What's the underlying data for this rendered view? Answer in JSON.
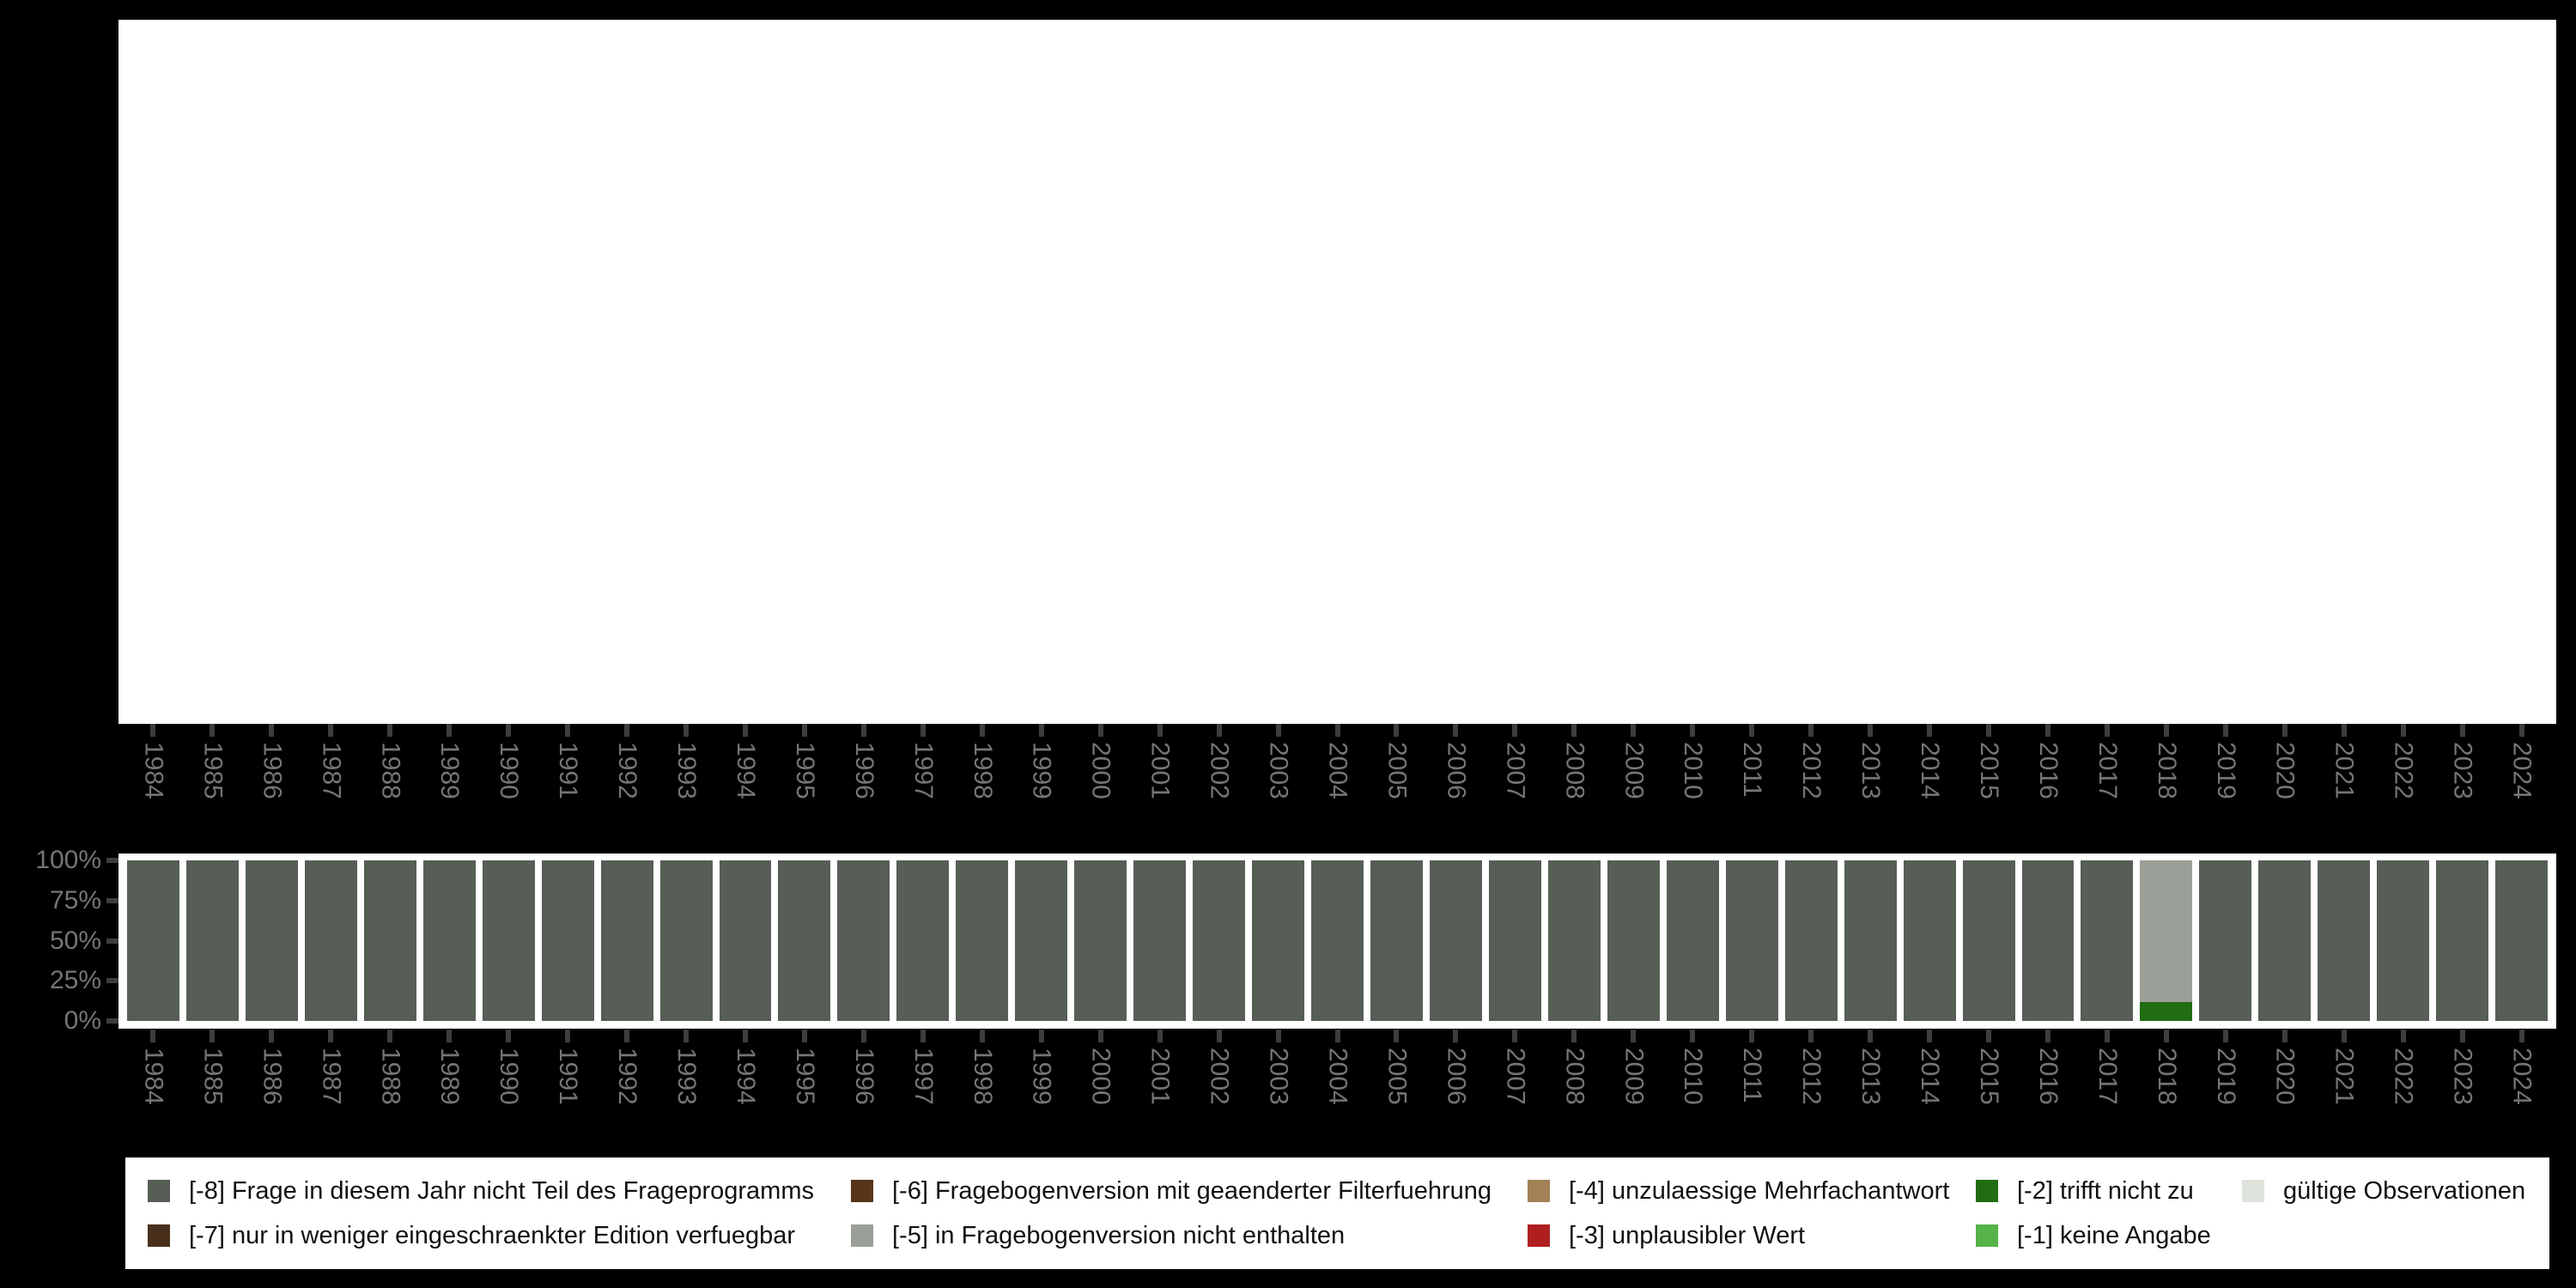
{
  "figure": {
    "background_color": "#000000",
    "panel_background_color": "#ffffff",
    "axis_tick_color": "#3d3d3d",
    "axis_label_color": "#757575"
  },
  "chart_data": {
    "type": "bar",
    "stacked": true,
    "title": "",
    "xlabel": "",
    "ylabel": "",
    "grid": false,
    "legend_position": "bottom",
    "categories": [
      "1984",
      "1985",
      "1986",
      "1987",
      "1988",
      "1989",
      "1990",
      "1991",
      "1992",
      "1993",
      "1994",
      "1995",
      "1996",
      "1997",
      "1998",
      "1999",
      "2000",
      "2001",
      "2002",
      "2003",
      "2004",
      "2005",
      "2006",
      "2007",
      "2008",
      "2009",
      "2010",
      "2011",
      "2012",
      "2013",
      "2014",
      "2015",
      "2016",
      "2017",
      "2018",
      "2019",
      "2020",
      "2021",
      "2022",
      "2023",
      "2024"
    ],
    "panels": [
      {
        "id": "top",
        "content": "empty",
        "y_ticks": [],
        "shares_x_axis": true
      },
      {
        "id": "bottom",
        "content": "stacked-percentage-bars"
      }
    ],
    "y_ticks": [
      "100%",
      "75%",
      "50%",
      "25%",
      "0%"
    ],
    "ylim": [
      0,
      100
    ],
    "series": [
      {
        "name": "[-8] Frage in diesem Jahr nicht Teil des Frageprogramms",
        "color": "#565E56",
        "values": [
          100,
          100,
          100,
          100,
          100,
          100,
          100,
          100,
          100,
          100,
          100,
          100,
          100,
          100,
          100,
          100,
          100,
          100,
          100,
          100,
          100,
          100,
          100,
          100,
          100,
          100,
          100,
          100,
          100,
          100,
          100,
          100,
          100,
          100,
          0,
          100,
          100,
          100,
          100,
          100,
          100
        ]
      },
      {
        "name": "[-5] in Fragebogenversion nicht enthalten",
        "color": "#9AA098",
        "values": [
          0,
          0,
          0,
          0,
          0,
          0,
          0,
          0,
          0,
          0,
          0,
          0,
          0,
          0,
          0,
          0,
          0,
          0,
          0,
          0,
          0,
          0,
          0,
          0,
          0,
          0,
          0,
          0,
          0,
          0,
          0,
          0,
          0,
          0,
          88,
          0,
          0,
          0,
          0,
          0,
          0
        ]
      },
      {
        "name": "[-2] trifft nicht zu",
        "color": "#216D11",
        "values": [
          0,
          0,
          0,
          0,
          0,
          0,
          0,
          0,
          0,
          0,
          0,
          0,
          0,
          0,
          0,
          0,
          0,
          0,
          0,
          0,
          0,
          0,
          0,
          0,
          0,
          0,
          0,
          0,
          0,
          0,
          0,
          0,
          0,
          0,
          12,
          0,
          0,
          0,
          0,
          0,
          0
        ]
      }
    ]
  },
  "legend": {
    "items": [
      {
        "label": "[-8] Frage in diesem Jahr nicht Teil des Frageprogramms",
        "color": "#565E56"
      },
      {
        "label": "[-7] nur in weniger eingeschraenkter Edition verfuegbar",
        "color": "#482F1B"
      },
      {
        "label": "[-6] Fragebogenversion mit geaenderter Filterfuehrung",
        "color": "#573519"
      },
      {
        "label": "[-5] in Fragebogenversion nicht enthalten",
        "color": "#9AA098"
      },
      {
        "label": "[-4] unzulaessige Mehrfachantwort",
        "color": "#A28157"
      },
      {
        "label": "[-3] unplausibler Wert",
        "color": "#AF1F1F"
      },
      {
        "label": "[-2] trifft nicht zu",
        "color": "#216D11"
      },
      {
        "label": "[-1] keine Angabe",
        "color": "#55B34A"
      },
      {
        "label": "gültige Observationen",
        "color": "#DEE3DB"
      }
    ],
    "columns": [
      [
        0,
        1
      ],
      [
        2,
        3
      ],
      [
        4,
        5
      ],
      [
        6,
        7
      ],
      [
        8
      ]
    ]
  }
}
